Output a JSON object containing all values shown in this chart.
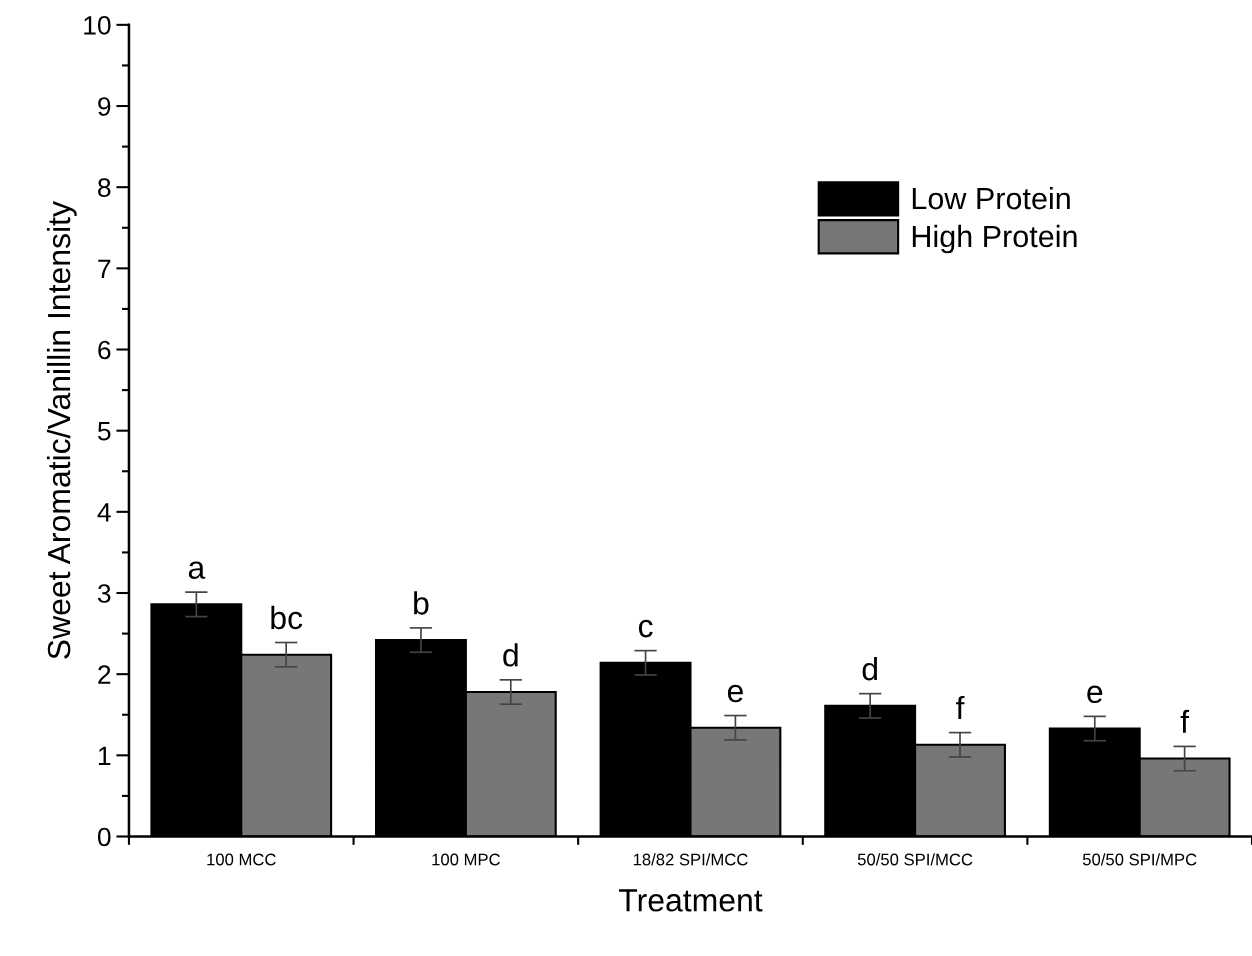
{
  "chart_data": {
    "type": "bar",
    "xlabel": "Treatment",
    "ylabel": "Sweet Aromatic/Vanillin Intensity",
    "categories": [
      "100 MCC",
      "100 MPC",
      "18/82 SPI/MCC",
      "50/50 SPI/MCC",
      "50/50 SPI/MPC"
    ],
    "series": [
      {
        "name": "Low Protein",
        "color": "#000000",
        "values": [
          2.86,
          2.42,
          2.14,
          1.61,
          1.33
        ],
        "errors": [
          0.15,
          0.15,
          0.15,
          0.15,
          0.15
        ]
      },
      {
        "name": "High Protein",
        "color": "#777777",
        "values": [
          2.24,
          1.78,
          1.34,
          1.13,
          0.96
        ],
        "errors": [
          0.15,
          0.15,
          0.15,
          0.15,
          0.15
        ]
      }
    ],
    "ylim": [
      0,
      10
    ],
    "yticks": [
      0,
      1,
      2,
      3,
      4,
      5,
      6,
      7,
      8,
      9,
      10
    ],
    "grid": false,
    "legend": "top right",
    "annotations": [
      "a",
      "bc",
      "b",
      "d",
      "c",
      "e",
      "d",
      "f",
      "e",
      "f"
    ]
  }
}
